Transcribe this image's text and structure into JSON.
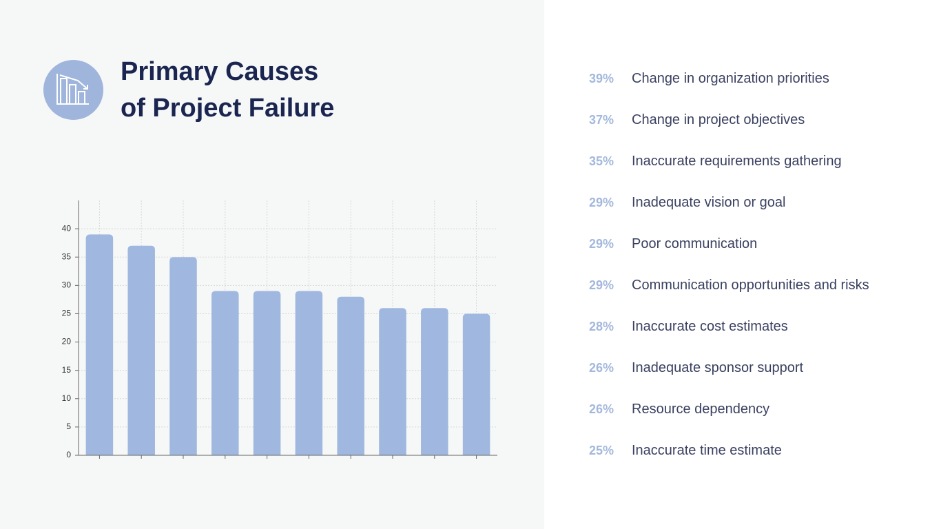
{
  "chart_data": {
    "type": "bar",
    "title": "Primary Causes of Project Failure",
    "categories": [
      "Change in organization priorities",
      "Change in project objectives",
      "Inaccurate requirements gathering",
      "Inadequate vision or goal",
      "Poor communication",
      "Communication opportunities and risks",
      "Inaccurate cost estimates",
      "Inadequate sponsor support",
      "Resource dependency",
      "Inaccurate time estimate"
    ],
    "values": [
      39,
      37,
      35,
      29,
      29,
      29,
      28,
      26,
      26,
      25
    ],
    "value_labels": [
      "39%",
      "37%",
      "35%",
      "29%",
      "29%",
      "29%",
      "28%",
      "26%",
      "26%",
      "25%"
    ],
    "color": "#a0b8df",
    "ylim": [
      0,
      45
    ],
    "yticks": [
      0,
      5,
      10,
      15,
      20,
      25,
      30,
      35,
      40
    ],
    "grid": true
  }
}
